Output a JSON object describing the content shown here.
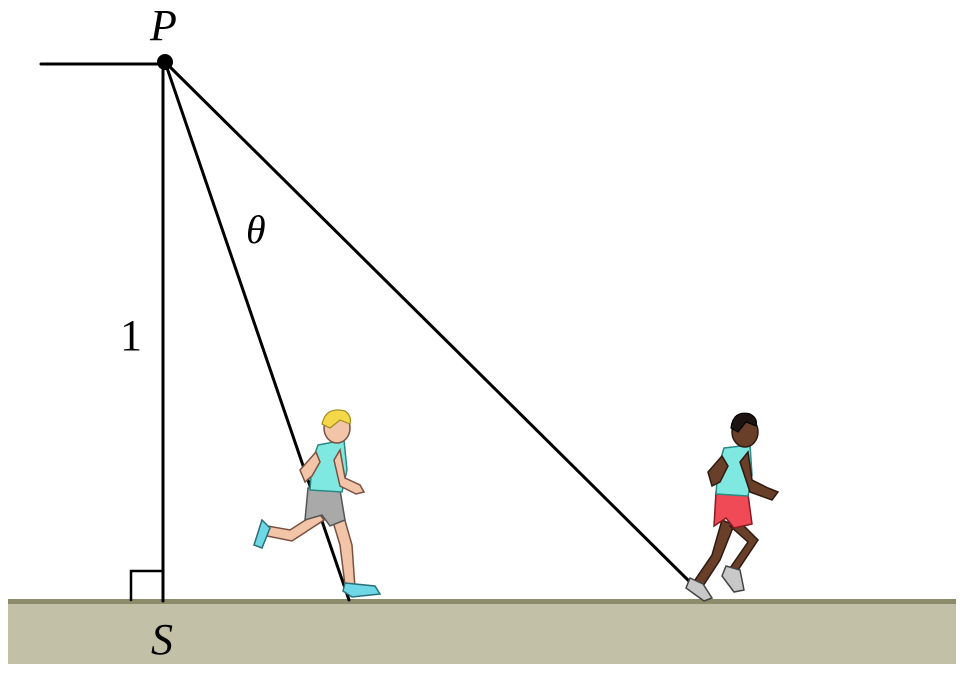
{
  "labels": {
    "point_top": "P",
    "point_base": "S",
    "height": "1",
    "angle": "θ"
  },
  "colors": {
    "ground_fill": "#c2c1a8",
    "ground_edge": "#8c8b6a",
    "line": "#000000",
    "shirt": "#7fe8e0",
    "shorts_left": "#a9a9a9",
    "shorts_right": "#ef4a55",
    "skin_left": "#f2c4a8",
    "skin_right": "#6a3f2a",
    "hair_left": "#f4d84a",
    "hair_right": "#1c1410",
    "shoe": "#6fd8e6"
  }
}
